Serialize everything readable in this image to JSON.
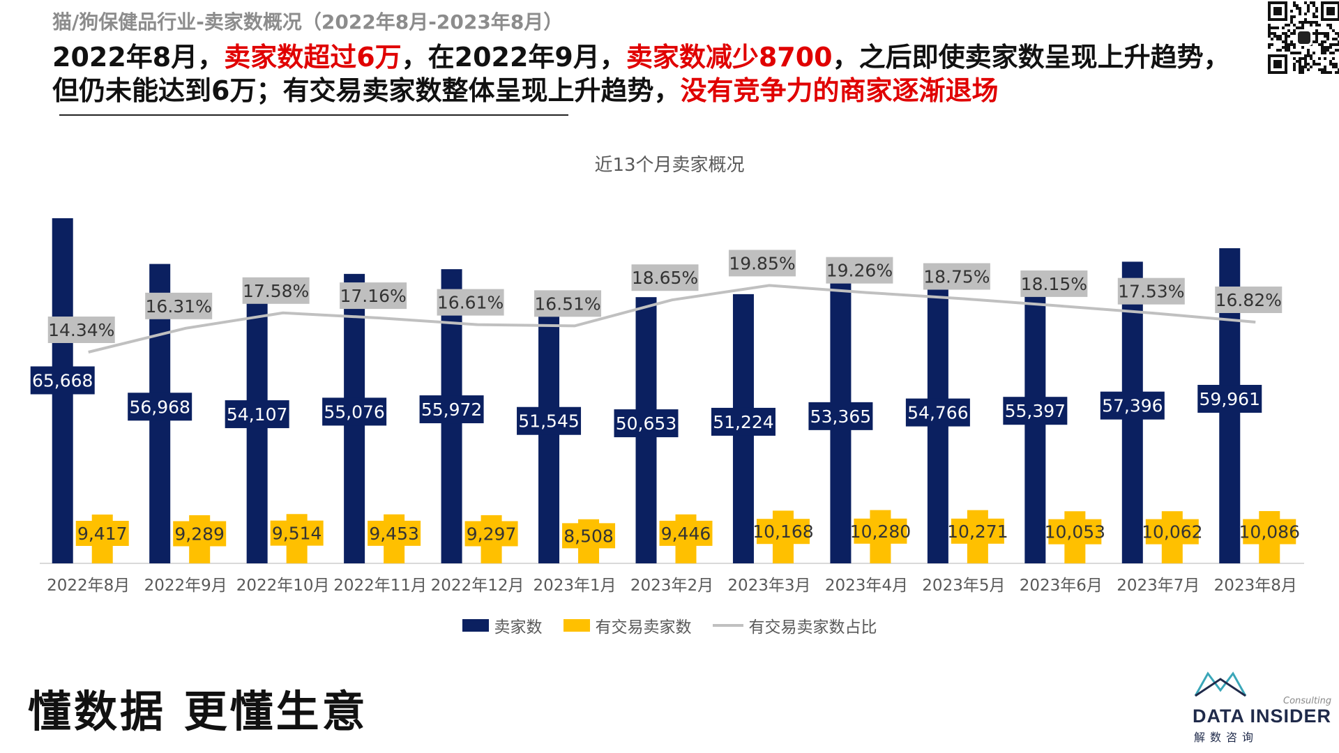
{
  "header": {
    "subtitle": "猫/狗保健品行业-卖家数概况（2022年8月-2023年8月）",
    "headline_parts": [
      {
        "text": "2022年8月，",
        "red": false
      },
      {
        "text": "卖家数超过6万",
        "red": true
      },
      {
        "text": "，在2022年9月，",
        "red": false
      },
      {
        "text": "卖家数减少8700",
        "red": true
      },
      {
        "text": "，之后即使卖家数呈现上升趋势，但仍未能达到6万；有交易卖家数整体呈现上升趋势，",
        "red": false
      },
      {
        "text": "没有竞争力的商家逐渐退场",
        "red": true
      }
    ]
  },
  "chart_data": {
    "type": "bar",
    "title": "近13个月卖家概况",
    "categories": [
      "2022年8月",
      "2022年9月",
      "2022年10月",
      "2022年11月",
      "2022年12月",
      "2023年1月",
      "2023年2月",
      "2023年3月",
      "2023年4月",
      "2023年5月",
      "2023年6月",
      "2023年7月",
      "2023年8月"
    ],
    "series": [
      {
        "name": "卖家数",
        "type": "bar",
        "color": "#0b2060",
        "values": [
          65668,
          56968,
          54107,
          55076,
          55972,
          51545,
          50653,
          51224,
          53365,
          54766,
          55397,
          57396,
          59961
        ],
        "labels": [
          "65,668",
          "56,968",
          "54,107",
          "55,076",
          "55,972",
          "51,545",
          "50,653",
          "51,224",
          "53,365",
          "54,766",
          "55,397",
          "57,396",
          "59,961"
        ]
      },
      {
        "name": "有交易卖家数",
        "type": "bar",
        "color": "#ffc000",
        "values": [
          9417,
          9289,
          9514,
          9453,
          9297,
          8508,
          9446,
          10168,
          10280,
          10271,
          10053,
          10062,
          10086
        ],
        "labels": [
          "9,417",
          "9,289",
          "9,514",
          "9,453",
          "9,297",
          "8,508",
          "9,446",
          "10,168",
          "10,280",
          "10,271",
          "10,053",
          "10,062",
          "10,086"
        ]
      },
      {
        "name": "有交易卖家数占比",
        "type": "line",
        "color": "#c0c0c0",
        "values": [
          14.34,
          16.31,
          17.58,
          17.16,
          16.61,
          16.51,
          18.65,
          19.85,
          19.26,
          18.75,
          18.15,
          17.53,
          16.82
        ],
        "labels": [
          "14.34%",
          "16.31%",
          "17.58%",
          "17.16%",
          "16.61%",
          "16.51%",
          "18.65%",
          "19.85%",
          "19.26%",
          "18.75%",
          "18.15%",
          "17.53%",
          "16.82%"
        ]
      }
    ],
    "grid": false,
    "legend_position": "bottom"
  },
  "footer": {
    "slogan": "懂数据 更懂生意",
    "logo_small": "Consulting",
    "logo_big": "DATA INSIDER",
    "logo_cn": "解数咨询"
  },
  "icons": {
    "qr": "qr-code-icon",
    "logo": "data-insider-logo-icon"
  }
}
